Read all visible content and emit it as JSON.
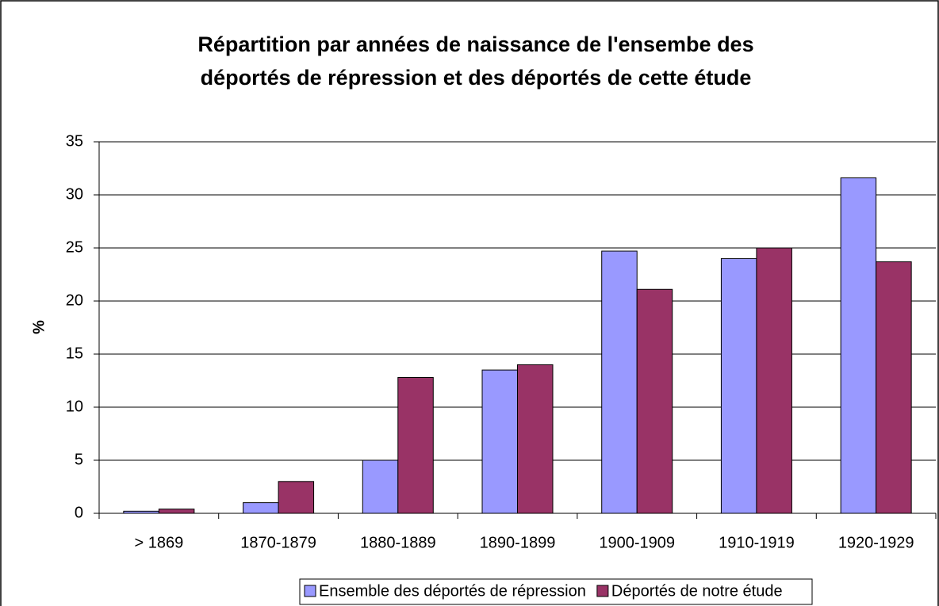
{
  "chart_data": {
    "type": "bar",
    "title": [
      "Répartition par années de naissance de l'ensembe des",
      "déportés de répression et des déportés de cette étude"
    ],
    "ylabel": "%",
    "categories": [
      "> 1869",
      "1870-1879",
      "1880-1889",
      "1890-1899",
      "1900-1909",
      "1910-1919",
      "1920-1929"
    ],
    "series": [
      {
        "name": "Ensemble des déportés de répression",
        "color": "#9999ff",
        "values": [
          0.2,
          1,
          5,
          13.5,
          24.7,
          24,
          31.6
        ]
      },
      {
        "name": "Déportés de notre étude",
        "color": "#993366",
        "values": [
          0.4,
          3,
          12.8,
          14,
          21.1,
          25,
          23.7
        ]
      }
    ],
    "ylim": [
      0,
      35
    ],
    "yticks": [
      0,
      5,
      10,
      15,
      20,
      25,
      30,
      35
    ],
    "grid": true,
    "legend": "bottom"
  }
}
